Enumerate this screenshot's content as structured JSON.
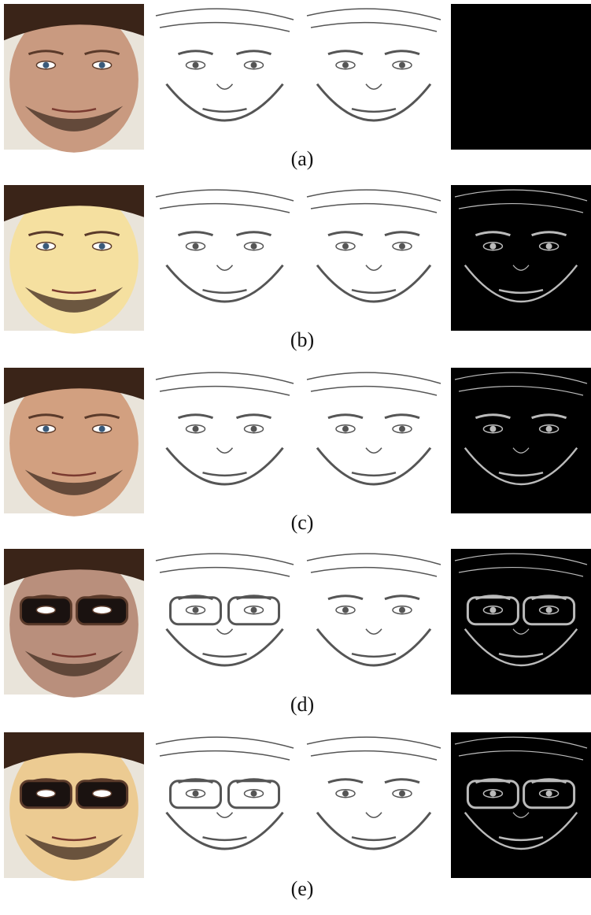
{
  "rows": [
    {
      "caption": "(a)"
    },
    {
      "caption": "(b)"
    },
    {
      "caption": "(c)"
    },
    {
      "caption": "(d)"
    },
    {
      "caption": "(e)"
    }
  ]
}
